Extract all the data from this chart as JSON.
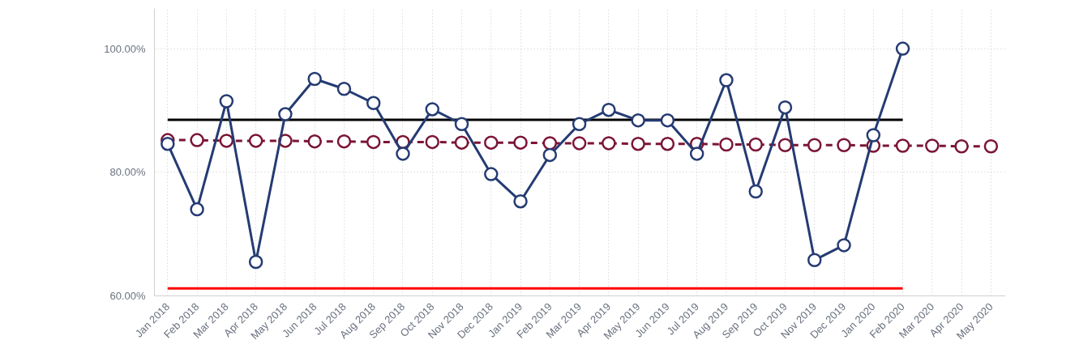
{
  "chart_data": {
    "type": "line",
    "categories": [
      "Jan 2018",
      "Feb 2018",
      "Mar 2018",
      "Apr 2018",
      "May 2018",
      "Jun 2018",
      "Jul 2018",
      "Aug 2018",
      "Sep 2018",
      "Oct 2018",
      "Nov 2018",
      "Dec 2018",
      "Jan 2019",
      "Feb 2019",
      "Mar 2019",
      "Apr 2019",
      "May 2019",
      "Jun 2019",
      "Jul 2019",
      "Aug 2019",
      "Sep 2019",
      "Oct 2019",
      "Nov 2019",
      "Dec 2019",
      "Jan 2020",
      "Feb 2020",
      "Mar 2020",
      "Apr 2020",
      "May 2020"
    ],
    "series": [
      {
        "color": "#7b1535",
        "marker": "circle",
        "line_style": "dashed",
        "values": [
          85.2,
          85.2,
          85.1,
          85.1,
          85.1,
          85.0,
          85.0,
          84.9,
          84.9,
          84.9,
          84.8,
          84.8,
          84.8,
          84.7,
          84.7,
          84.7,
          84.6,
          84.6,
          84.6,
          84.5,
          84.5,
          84.4,
          84.4,
          84.4,
          84.3,
          84.3,
          84.3,
          84.2,
          84.2
        ]
      },
      {
        "color": "#000000",
        "marker": "none",
        "line_style": "solid",
        "values": [
          88.5,
          88.5,
          88.5,
          88.5,
          88.5,
          88.5,
          88.5,
          88.5,
          88.5,
          88.5,
          88.5,
          88.5,
          88.5,
          88.5,
          88.5,
          88.5,
          88.5,
          88.5,
          88.5,
          88.5,
          88.5,
          88.5,
          88.5,
          88.5,
          88.5,
          88.5,
          null,
          null,
          null
        ]
      },
      {
        "color": "#ff0000",
        "marker": "none",
        "line_style": "solid",
        "values": [
          61.2,
          61.2,
          61.2,
          61.2,
          61.2,
          61.2,
          61.2,
          61.2,
          61.2,
          61.2,
          61.2,
          61.2,
          61.2,
          61.2,
          61.2,
          61.2,
          61.2,
          61.2,
          61.2,
          61.2,
          61.2,
          61.2,
          61.2,
          61.2,
          61.2,
          61.2,
          null,
          null,
          null
        ]
      },
      {
        "color": "#253b73",
        "marker": "circle",
        "line_style": "solid",
        "values": [
          84.6,
          74.0,
          91.5,
          65.5,
          89.4,
          95.1,
          93.5,
          91.2,
          83.0,
          90.2,
          87.8,
          79.7,
          75.3,
          82.8,
          87.8,
          90.1,
          88.4,
          88.4,
          83.0,
          94.9,
          76.9,
          90.5,
          65.8,
          68.2,
          86.0,
          100.0,
          null,
          null,
          null
        ]
      }
    ],
    "ylim": [
      60,
      106.5
    ],
    "yticks": [
      {
        "value": 60,
        "label": "60.00%"
      },
      {
        "value": 80,
        "label": "80.00%"
      },
      {
        "value": 100,
        "label": "100.00%"
      }
    ],
    "grid": true
  }
}
